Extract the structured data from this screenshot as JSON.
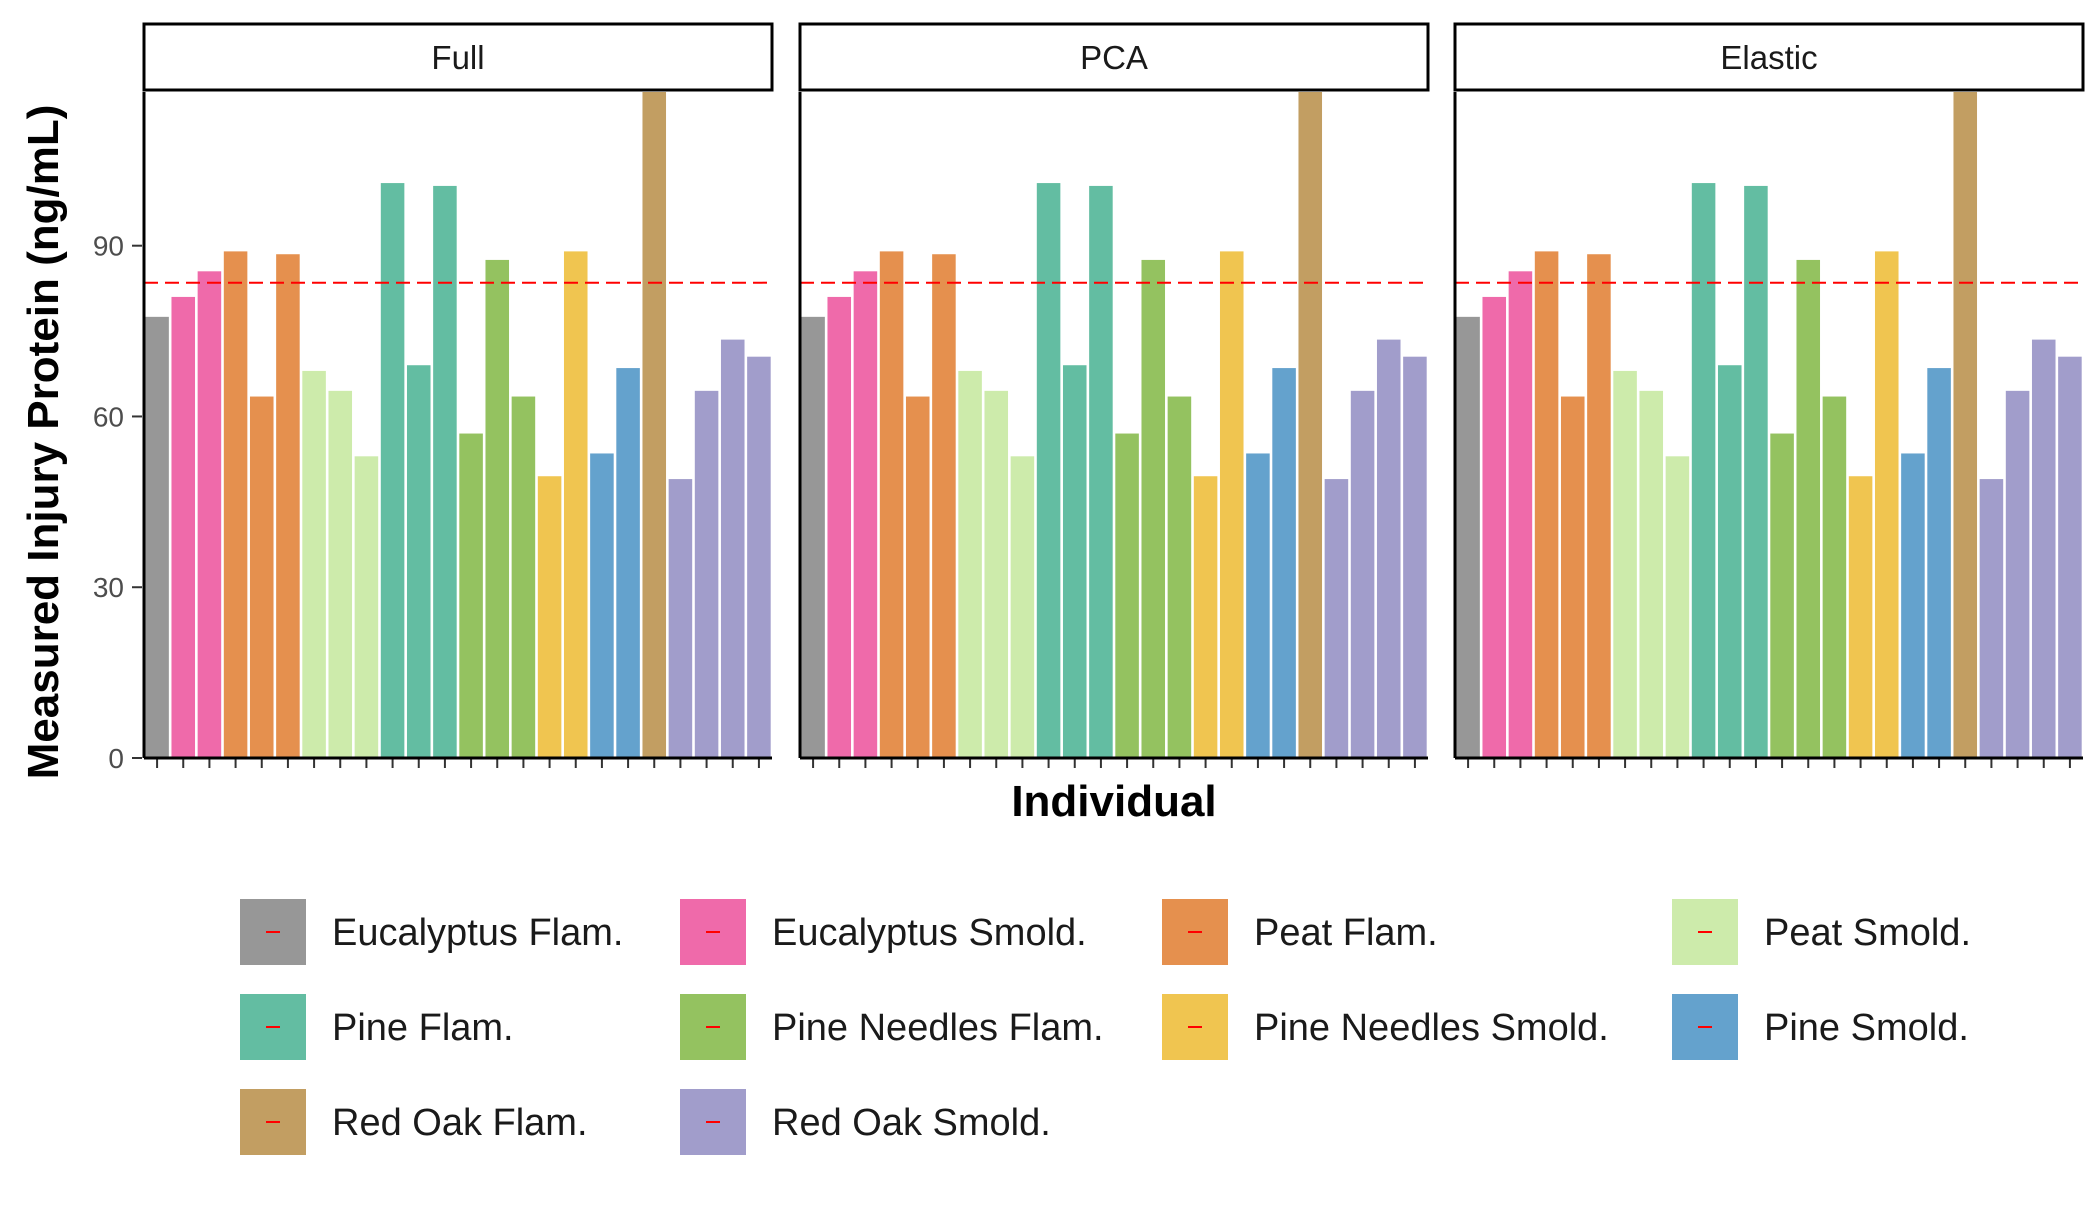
{
  "chart_data": {
    "type": "bar",
    "xlabel": "Individual",
    "ylabel": "Measured Injury Protein (ng/mL)",
    "ylim": [
      0,
      117
    ],
    "y_ticks": [
      0,
      30,
      60,
      90
    ],
    "reference_line": {
      "value": 83.5,
      "style": "dashed",
      "color": "#FF0000"
    },
    "facets": [
      {
        "label": "Full"
      },
      {
        "label": "PCA"
      },
      {
        "label": "Elastic"
      }
    ],
    "groups": [
      {
        "name": "Eucalyptus Flam.",
        "color": "#979797"
      },
      {
        "name": "Eucalyptus Smold.",
        "color": "#EF6AAA"
      },
      {
        "name": "Peat Flam.",
        "color": "#E5904E"
      },
      {
        "name": "Peat Smold.",
        "color": "#CDEBAB"
      },
      {
        "name": "Pine Flam.",
        "color": "#63BDA2"
      },
      {
        "name": "Pine Needles Flam.",
        "color": "#94C260"
      },
      {
        "name": "Pine Needles Smold.",
        "color": "#F0C550"
      },
      {
        "name": "Pine Smold.",
        "color": "#64A2CD"
      },
      {
        "name": "Red Oak Flam.",
        "color": "#C29E62"
      },
      {
        "name": "Red Oak Smold.",
        "color": "#A19DCB"
      }
    ],
    "bars": [
      {
        "group": "Eucalyptus Flam.",
        "value": 77.5
      },
      {
        "group": "Eucalyptus Smold.",
        "value": 81
      },
      {
        "group": "Eucalyptus Smold.",
        "value": 85.5
      },
      {
        "group": "Peat Flam.",
        "value": 89
      },
      {
        "group": "Peat Flam.",
        "value": 63.5
      },
      {
        "group": "Peat Flam.",
        "value": 88.5
      },
      {
        "group": "Peat Smold.",
        "value": 68
      },
      {
        "group": "Peat Smold.",
        "value": 64.5
      },
      {
        "group": "Peat Smold.",
        "value": 53
      },
      {
        "group": "Pine Flam.",
        "value": 101
      },
      {
        "group": "Pine Flam.",
        "value": 69
      },
      {
        "group": "Pine Flam.",
        "value": 100.5
      },
      {
        "group": "Pine Needles Flam.",
        "value": 57
      },
      {
        "group": "Pine Needles Flam.",
        "value": 87.5
      },
      {
        "group": "Pine Needles Flam.",
        "value": 63.5
      },
      {
        "group": "Pine Needles Smold.",
        "value": 49.5
      },
      {
        "group": "Pine Needles Smold.",
        "value": 89
      },
      {
        "group": "Pine Smold.",
        "value": 53.5
      },
      {
        "group": "Pine Smold.",
        "value": 68.5
      },
      {
        "group": "Red Oak Flam.",
        "value": 117
      },
      {
        "group": "Red Oak Smold.",
        "value": 49
      },
      {
        "group": "Red Oak Smold.",
        "value": 64.5
      },
      {
        "group": "Red Oak Smold.",
        "value": 73.5
      },
      {
        "group": "Red Oak Smold.",
        "value": 70.5
      }
    ],
    "legend": {
      "position": "bottom",
      "columns": 4
    },
    "grid": false
  }
}
